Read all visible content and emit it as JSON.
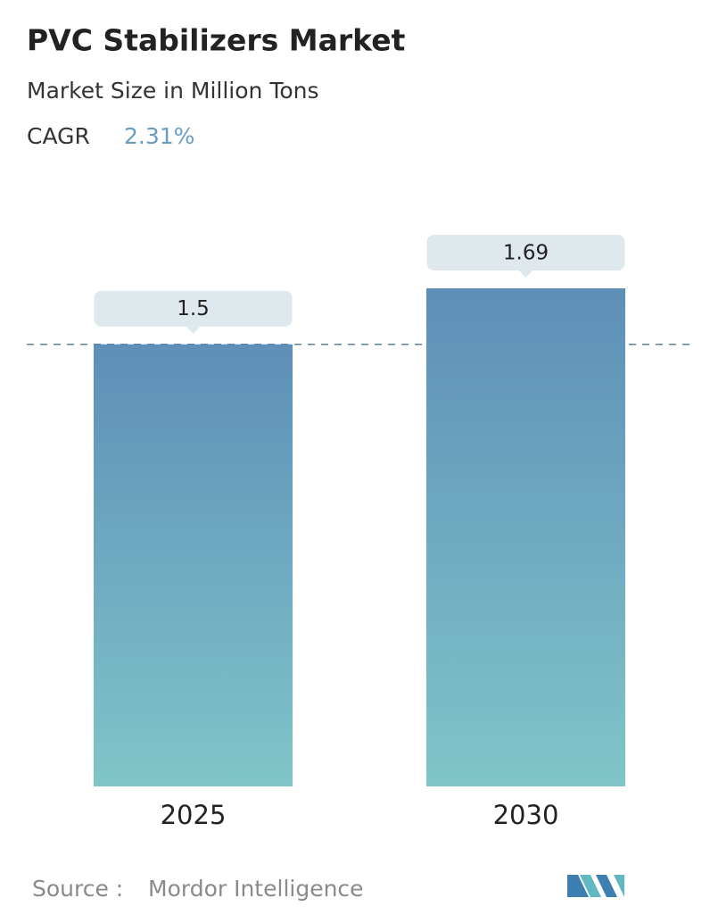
{
  "chart_data": {
    "type": "bar",
    "title": "PVC Stabilizers Market",
    "subtitle": "Market Size in Million Tons",
    "cagr_label": "CAGR",
    "cagr": "2.31%",
    "categories": [
      "2025",
      "2030"
    ],
    "values": [
      1.5,
      1.69
    ],
    "color_top": "#5e8fb8",
    "color_bottom": "#80c5c9",
    "source_label": "Source :",
    "source": "Mordor Intelligence"
  }
}
